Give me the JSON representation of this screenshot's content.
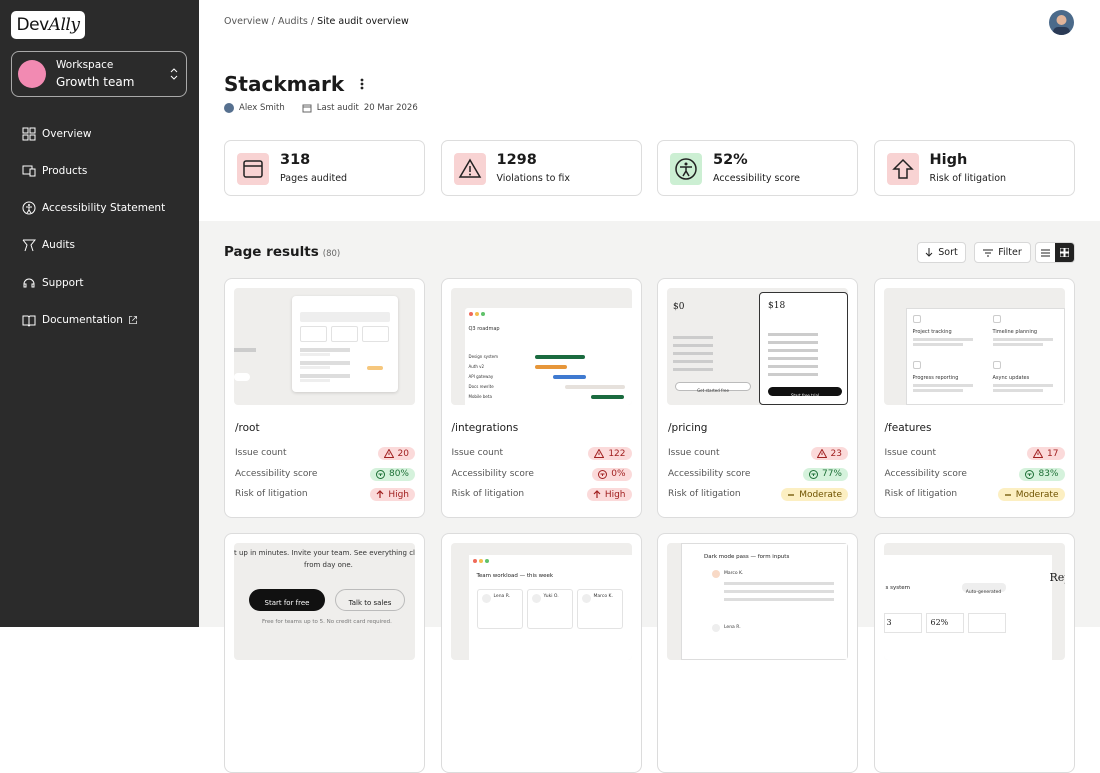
{
  "brand": {
    "prefix": "Dev",
    "suffix": "Ally"
  },
  "workspace": {
    "label": "Workspace",
    "name": "Growth team"
  },
  "nav": [
    "Overview",
    "Products",
    "Accessibility Statement",
    "Audits",
    "Support",
    "Documentation"
  ],
  "breadcrumb": {
    "separator": "/",
    "items": [
      "Overview",
      "Audits",
      "Site audit overview"
    ]
  },
  "header": {
    "title": "Stackmark",
    "owner": "Alex Smith",
    "last_audit_label": "Last audit",
    "last_audit_date": "20 Mar 2026"
  },
  "stats": [
    {
      "value": 318,
      "label": "Pages audited",
      "tone": "danger"
    },
    {
      "value": 1298,
      "label": "Violations to fix",
      "tone": "danger"
    },
    {
      "value": "52%",
      "label": "Accessibility score",
      "tone": "success"
    },
    {
      "value": "High",
      "label": "Risk of litigation",
      "tone": "danger"
    }
  ],
  "results": {
    "title": "Page results",
    "count": "(80)",
    "sort": "Sort",
    "filter": "Filter",
    "metric_labels": [
      "Issue count",
      "Accessibility score",
      "Risk of litigation"
    ],
    "cards": [
      {
        "path": "/root",
        "metrics": [
          {
            "value": "20",
            "tone": "danger"
          },
          {
            "value": "80%",
            "tone": "success"
          },
          {
            "value": "High",
            "tone": "danger"
          }
        ],
        "thumb": []
      },
      {
        "path": "/integrations",
        "metrics": [
          {
            "value": "122",
            "tone": "danger"
          },
          {
            "value": "0%",
            "tone": "danger"
          },
          {
            "value": "High",
            "tone": "danger"
          }
        ],
        "thumb": [
          "Q3 roadmap",
          "Design system",
          "Auth v2",
          "API gateway",
          "Docs rewrite",
          "Mobile beta"
        ]
      },
      {
        "path": "/pricing",
        "metrics": [
          {
            "value": "23",
            "tone": "danger"
          },
          {
            "value": "77%",
            "tone": "success"
          },
          {
            "value": "Moderate",
            "tone": "warning"
          }
        ],
        "thumb": [
          "$0",
          "$18",
          "Get started free",
          "Start free trial"
        ]
      },
      {
        "path": "/features",
        "metrics": [
          {
            "value": "17",
            "tone": "danger"
          },
          {
            "value": "83%",
            "tone": "success"
          },
          {
            "value": "Moderate",
            "tone": "warning"
          }
        ],
        "thumb": [
          "Project tracking",
          "Timeline planning",
          "Progress reporting",
          "Async updates"
        ]
      },
      {
        "thumb": [
          "t up in minutes. Invite your team. See everything cl",
          "from day one.",
          "Start for free",
          "Talk to sales",
          "Free for teams up to 5. No credit card required."
        ]
      },
      {
        "thumb": [
          "Team workload — this week",
          "Lena R.",
          "Yuki O.",
          "Marco K."
        ]
      },
      {
        "thumb": [
          "Dark mode pass — form inputs",
          "Marco K.",
          "Lena R."
        ]
      },
      {
        "thumb": [
          "s system",
          "Auto-generated",
          "3",
          "62%",
          "Rep"
        ]
      }
    ]
  }
}
